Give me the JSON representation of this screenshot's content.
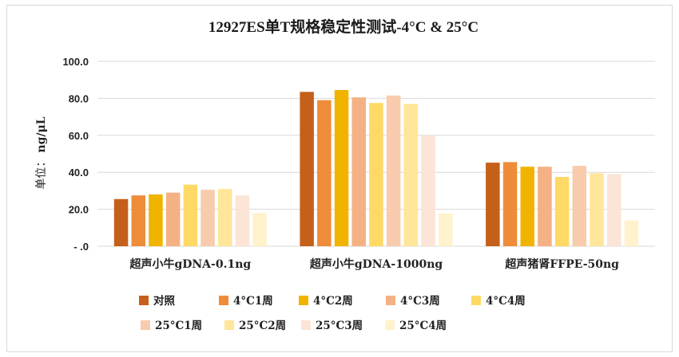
{
  "chart_data": {
    "type": "bar",
    "title": "12927ES单T规格稳定性测试-4°C & 25°C",
    "ylabel_prefix": "单位：",
    "ylabel_unit": "ng/μL",
    "ylim": [
      0,
      100
    ],
    "y_ticks": [
      "- .0",
      "20.0",
      "40.0",
      "60.0",
      "80.0",
      "100.0"
    ],
    "y_tick_values": [
      0,
      20,
      40,
      60,
      80,
      100
    ],
    "grid": true,
    "legend_position": "bottom",
    "categories": [
      "超声小牛gDNA-0.1ng",
      "超声小牛gDNA-1000ng",
      "超声猪肾FFPE-50ng"
    ],
    "series": [
      {
        "name": "对照",
        "color": "#c5601a",
        "values": [
          25.5,
          83.5,
          45.2
        ]
      },
      {
        "name": "4°C1周",
        "color": "#ef8c3a",
        "values": [
          27.5,
          79.0,
          45.5
        ]
      },
      {
        "name": "4°C2周",
        "color": "#f0b400",
        "values": [
          28.0,
          84.5,
          43.0
        ]
      },
      {
        "name": "4°C3周",
        "color": "#f4b183",
        "values": [
          29.0,
          80.5,
          43.0
        ]
      },
      {
        "name": "4°C4周",
        "color": "#ffd966",
        "values": [
          33.3,
          77.5,
          37.5
        ]
      },
      {
        "name": "25°C1周",
        "color": "#f8cbad",
        "values": [
          30.5,
          81.5,
          43.5
        ]
      },
      {
        "name": "25°C2周",
        "color": "#ffe699",
        "values": [
          31.0,
          77.0,
          39.5
        ]
      },
      {
        "name": "25°C3周",
        "color": "#fce4d6",
        "values": [
          27.5,
          60.0,
          39.0
        ]
      },
      {
        "name": "25°C4周",
        "color": "#fff2cc",
        "values": [
          18.0,
          17.8,
          14.0
        ]
      }
    ]
  }
}
